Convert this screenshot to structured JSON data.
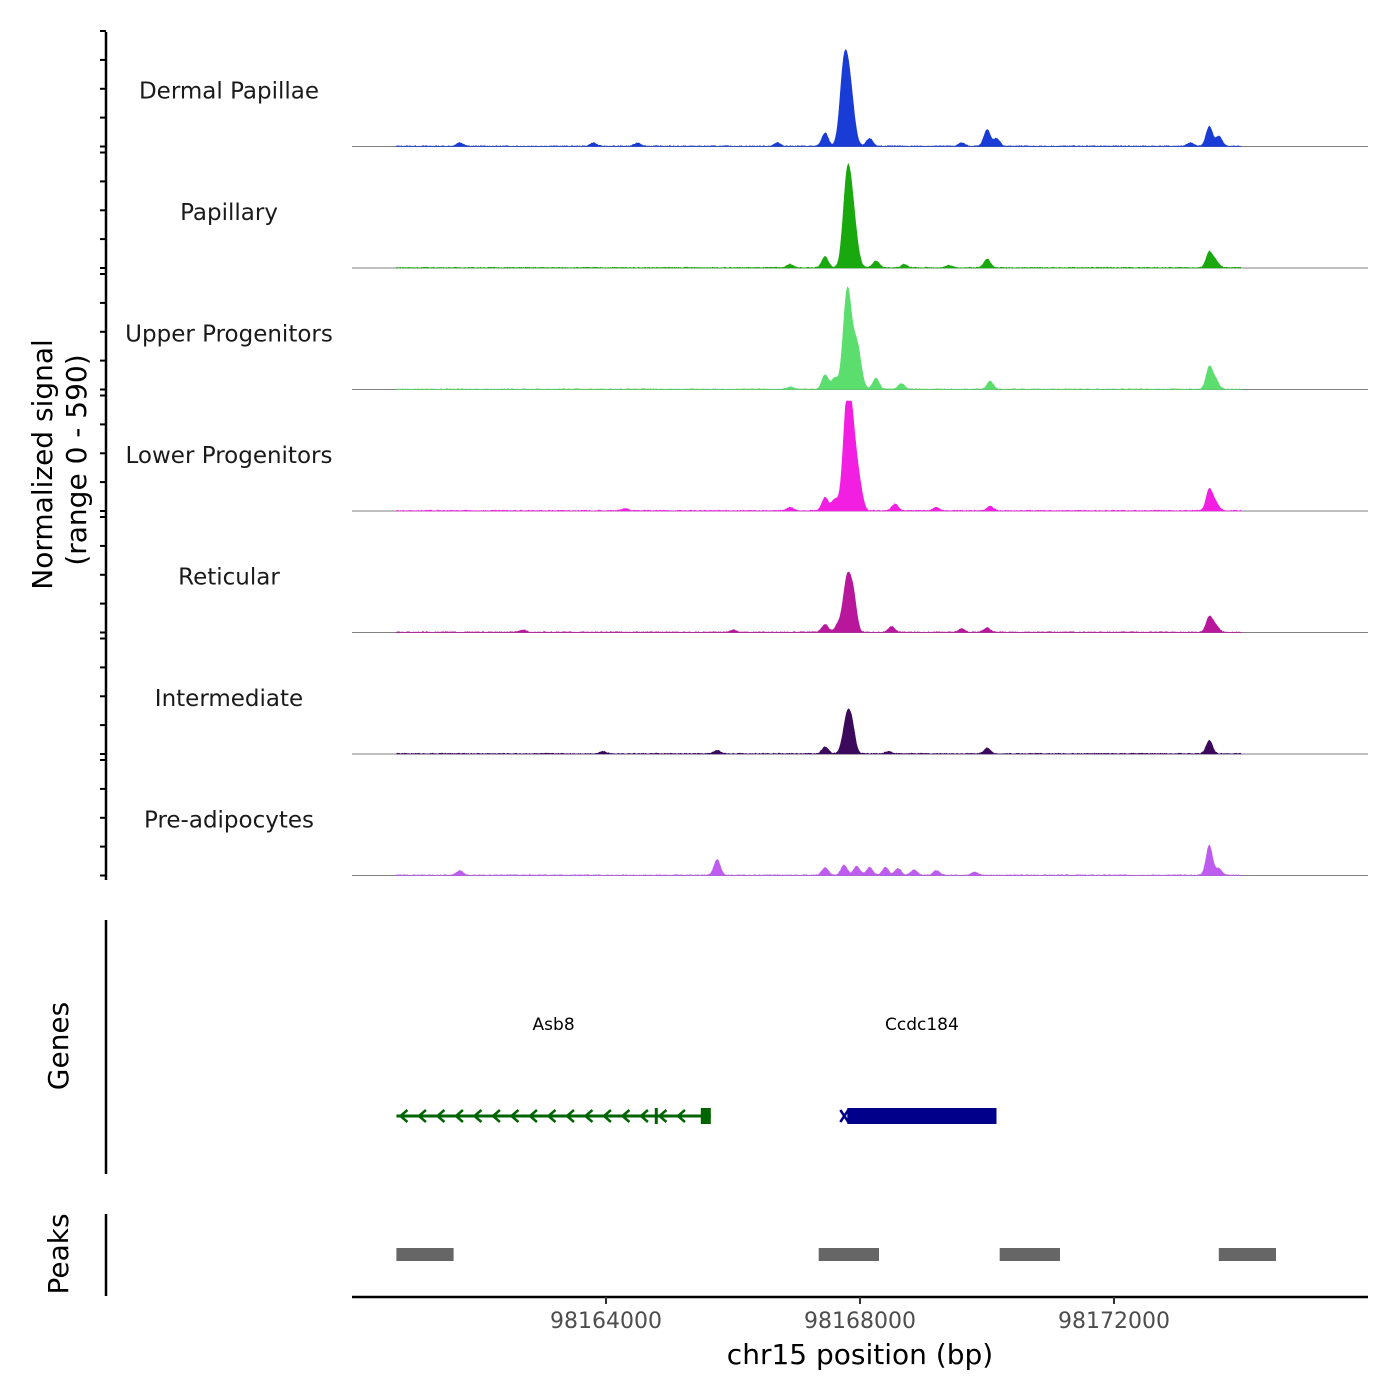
{
  "chart_data": {
    "type": "area",
    "title": "",
    "ylabel_line1": "Normalized signal",
    "ylabel_line2": "(range 0 - 590)",
    "ylim": [
      0,
      590
    ],
    "xlabel": "chr15 position (bp)",
    "xlim": [
      98160000,
      98176000
    ],
    "xticks": [
      98164000,
      98168000,
      98172000
    ],
    "xtick_labels": [
      "98164000",
      "98168000",
      "98172000"
    ],
    "tracks": [
      {
        "name": "Dermal Papillae",
        "color": "#1a3cd6",
        "peaks": [
          {
            "pos": 98167750,
            "height": 0.72
          },
          {
            "pos": 98167850,
            "height": 0.42
          },
          {
            "pos": 98167450,
            "height": 0.12
          },
          {
            "pos": 98168150,
            "height": 0.07
          },
          {
            "pos": 98170000,
            "height": 0.15
          },
          {
            "pos": 98170150,
            "height": 0.07
          },
          {
            "pos": 98173500,
            "height": 0.18
          },
          {
            "pos": 98173650,
            "height": 0.09
          },
          {
            "pos": 98173200,
            "height": 0.03
          },
          {
            "pos": 98161700,
            "height": 0.03
          },
          {
            "pos": 98163800,
            "height": 0.03
          },
          {
            "pos": 98164500,
            "height": 0.03
          },
          {
            "pos": 98166700,
            "height": 0.03
          },
          {
            "pos": 98169600,
            "height": 0.03
          }
        ]
      },
      {
        "name": "Papillary",
        "color": "#19a80d",
        "peaks": [
          {
            "pos": 98167800,
            "height": 0.82
          },
          {
            "pos": 98167900,
            "height": 0.35
          },
          {
            "pos": 98167450,
            "height": 0.1
          },
          {
            "pos": 98168250,
            "height": 0.06
          },
          {
            "pos": 98170000,
            "height": 0.08
          },
          {
            "pos": 98173500,
            "height": 0.14
          },
          {
            "pos": 98173600,
            "height": 0.06
          },
          {
            "pos": 98166900,
            "height": 0.03
          },
          {
            "pos": 98168700,
            "height": 0.03
          },
          {
            "pos": 98169400,
            "height": 0.02
          }
        ]
      },
      {
        "name": "Upper Progenitors",
        "color": "#5cde6e",
        "peaks": [
          {
            "pos": 98167800,
            "height": 0.9
          },
          {
            "pos": 98167950,
            "height": 0.4
          },
          {
            "pos": 98167450,
            "height": 0.13
          },
          {
            "pos": 98167600,
            "height": 0.1
          },
          {
            "pos": 98168250,
            "height": 0.1
          },
          {
            "pos": 98168650,
            "height": 0.05
          },
          {
            "pos": 98170050,
            "height": 0.07
          },
          {
            "pos": 98173500,
            "height": 0.2
          },
          {
            "pos": 98173600,
            "height": 0.08
          },
          {
            "pos": 98166900,
            "height": 0.02
          }
        ]
      },
      {
        "name": "Lower Progenitors",
        "color": "#f21fe2",
        "peaks": [
          {
            "pos": 98167800,
            "height": 0.99
          },
          {
            "pos": 98167900,
            "height": 0.5
          },
          {
            "pos": 98167450,
            "height": 0.12
          },
          {
            "pos": 98167600,
            "height": 0.1
          },
          {
            "pos": 98168000,
            "height": 0.14
          },
          {
            "pos": 98168550,
            "height": 0.06
          },
          {
            "pos": 98170050,
            "height": 0.04
          },
          {
            "pos": 98173500,
            "height": 0.19
          },
          {
            "pos": 98173600,
            "height": 0.07
          },
          {
            "pos": 98166900,
            "height": 0.03
          },
          {
            "pos": 98164300,
            "height": 0.02
          },
          {
            "pos": 98169200,
            "height": 0.03
          }
        ]
      },
      {
        "name": "Reticular",
        "color": "#b8179c",
        "peaks": [
          {
            "pos": 98167800,
            "height": 0.5
          },
          {
            "pos": 98167900,
            "height": 0.25
          },
          {
            "pos": 98167450,
            "height": 0.07
          },
          {
            "pos": 98167650,
            "height": 0.06
          },
          {
            "pos": 98168500,
            "height": 0.05
          },
          {
            "pos": 98169600,
            "height": 0.03
          },
          {
            "pos": 98170000,
            "height": 0.04
          },
          {
            "pos": 98173500,
            "height": 0.14
          },
          {
            "pos": 98173600,
            "height": 0.06
          },
          {
            "pos": 98162700,
            "height": 0.02
          },
          {
            "pos": 98166000,
            "height": 0.02
          }
        ]
      },
      {
        "name": "Intermediate",
        "color": "#3c0a5c",
        "peaks": [
          {
            "pos": 98167800,
            "height": 0.35
          },
          {
            "pos": 98167880,
            "height": 0.15
          },
          {
            "pos": 98167450,
            "height": 0.06
          },
          {
            "pos": 98170000,
            "height": 0.05
          },
          {
            "pos": 98173500,
            "height": 0.12
          },
          {
            "pos": 98165750,
            "height": 0.03
          },
          {
            "pos": 98163950,
            "height": 0.02
          },
          {
            "pos": 98168450,
            "height": 0.02
          }
        ]
      },
      {
        "name": "Pre-adipocytes",
        "color": "#bf5cf0",
        "peaks": [
          {
            "pos": 98161700,
            "height": 0.04
          },
          {
            "pos": 98165750,
            "height": 0.14
          },
          {
            "pos": 98167450,
            "height": 0.07
          },
          {
            "pos": 98167750,
            "height": 0.09
          },
          {
            "pos": 98167950,
            "height": 0.08
          },
          {
            "pos": 98168150,
            "height": 0.07
          },
          {
            "pos": 98168400,
            "height": 0.07
          },
          {
            "pos": 98168600,
            "height": 0.06
          },
          {
            "pos": 98168850,
            "height": 0.05
          },
          {
            "pos": 98169200,
            "height": 0.04
          },
          {
            "pos": 98169800,
            "height": 0.03
          },
          {
            "pos": 98173500,
            "height": 0.27
          },
          {
            "pos": 98173650,
            "height": 0.06
          },
          {
            "pos": 98174300,
            "height": 0.04
          }
        ]
      }
    ],
    "genes_track_label": "Genes",
    "genes": [
      {
        "name": "Asb8",
        "start": 98160700,
        "end": 98165650,
        "strand": "-",
        "color": "#006400"
      },
      {
        "name": "Ccdc184",
        "start": 98167800,
        "end": 98170150,
        "strand": "+",
        "color": "#00008b"
      }
    ],
    "peaks_track_label": "Peaks",
    "peak_regions": [
      {
        "start": 98160700,
        "end": 98161600
      },
      {
        "start": 98167350,
        "end": 98168300
      },
      {
        "start": 98170200,
        "end": 98171150
      },
      {
        "start": 98173650,
        "end": 98174550
      }
    ]
  }
}
